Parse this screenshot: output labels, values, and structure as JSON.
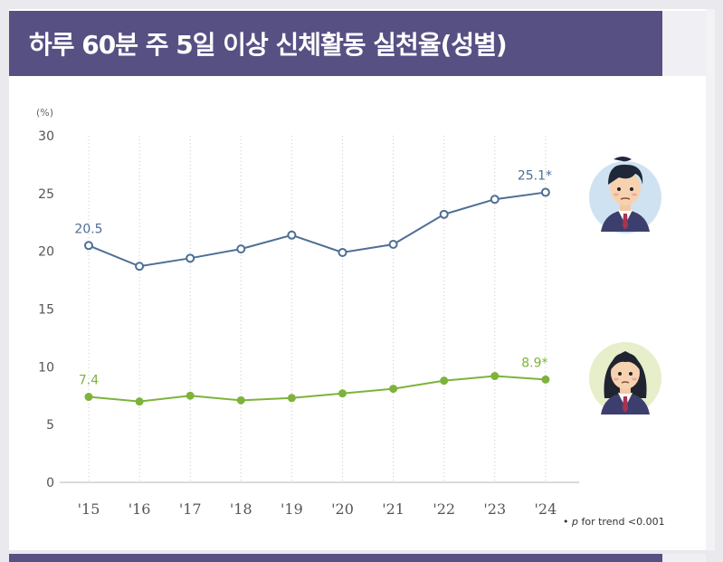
{
  "title": "하루 60분 주 5일 이상 신체활동 실천율(성별)",
  "footnote": {
    "bullet": "•",
    "p": "p",
    "text": "for trend <0.001"
  },
  "legend_icons": [
    "boy-student-icon",
    "girl-student-icon"
  ],
  "colors": {
    "banner": "#575083",
    "boys": "#4d6f95",
    "girls": "#7db33b"
  },
  "chart_data": {
    "type": "line",
    "y_unit_label": "(%)",
    "ylim": [
      0,
      30
    ],
    "yticks": [
      "0",
      "5",
      "10",
      "15",
      "20",
      "25",
      "30"
    ],
    "categories": [
      "'15",
      "'16",
      "'17",
      "'18",
      "'19",
      "'20",
      "'21",
      "'22",
      "'23",
      "'24"
    ],
    "grid": "vertical dotted",
    "series": [
      {
        "icon": "boy-student-icon",
        "color": "#4d6f95",
        "values": [
          20.5,
          18.7,
          19.4,
          20.2,
          21.4,
          19.9,
          20.6,
          23.2,
          24.5,
          25.1
        ],
        "labels": [
          {
            "index": 0,
            "text": "20.5"
          },
          {
            "index": 9,
            "text": "25.1*"
          }
        ]
      },
      {
        "icon": "girl-student-icon",
        "color": "#7db33b",
        "values": [
          7.4,
          7.0,
          7.5,
          7.1,
          7.3,
          7.7,
          8.1,
          8.8,
          9.2,
          8.9
        ],
        "labels": [
          {
            "index": 0,
            "text": "7.4"
          },
          {
            "index": 9,
            "text": "8.9*"
          }
        ]
      }
    ]
  }
}
